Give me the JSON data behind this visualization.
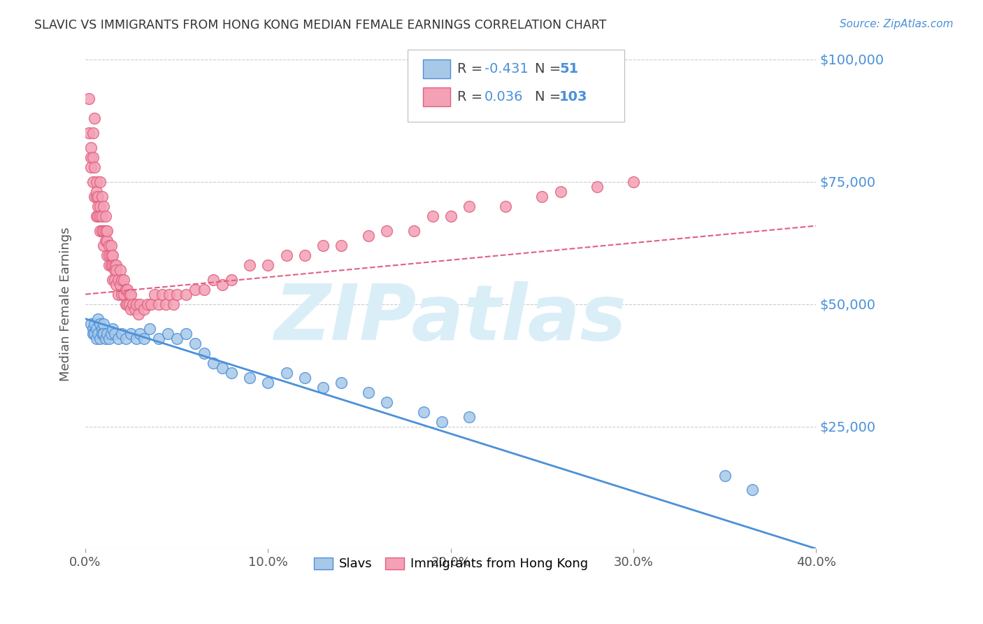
{
  "title": "SLAVIC VS IMMIGRANTS FROM HONG KONG MEDIAN FEMALE EARNINGS CORRELATION CHART",
  "source": "Source: ZipAtlas.com",
  "ylabel": "Median Female Earnings",
  "x_min": 0.0,
  "x_max": 0.4,
  "y_min": 0,
  "y_max": 100000,
  "x_ticks": [
    0.0,
    0.1,
    0.2,
    0.3,
    0.4
  ],
  "x_tick_labels": [
    "0.0%",
    "10.0%",
    "20.0%",
    "30.0%",
    "40.0%"
  ],
  "y_tick_labels": [
    "$25,000",
    "$50,000",
    "$75,000",
    "$100,000"
  ],
  "y_ticks": [
    25000,
    50000,
    75000,
    100000
  ],
  "watermark": "ZIPatlas",
  "legend_labels": [
    "Slavs",
    "Immigrants from Hong Kong"
  ],
  "slavs_color": "#a8c8e8",
  "hk_color": "#f4a0b5",
  "slavs_line_color": "#4a90d9",
  "hk_line_color": "#e06080",
  "R_slavs": -0.431,
  "N_slavs": 51,
  "R_hk": 0.036,
  "N_hk": 103,
  "slavs_scatter_x": [
    0.003,
    0.004,
    0.004,
    0.005,
    0.005,
    0.006,
    0.006,
    0.007,
    0.007,
    0.008,
    0.008,
    0.009,
    0.009,
    0.01,
    0.01,
    0.011,
    0.012,
    0.013,
    0.014,
    0.015,
    0.016,
    0.018,
    0.02,
    0.022,
    0.025,
    0.028,
    0.03,
    0.032,
    0.035,
    0.04,
    0.045,
    0.05,
    0.055,
    0.06,
    0.065,
    0.07,
    0.075,
    0.08,
    0.09,
    0.1,
    0.11,
    0.12,
    0.13,
    0.14,
    0.155,
    0.165,
    0.185,
    0.195,
    0.21,
    0.35,
    0.365
  ],
  "slavs_scatter_y": [
    46000,
    45000,
    44000,
    46000,
    44000,
    45000,
    43000,
    47000,
    44000,
    46000,
    43000,
    45000,
    44000,
    46000,
    44000,
    43000,
    44000,
    43000,
    44000,
    45000,
    44000,
    43000,
    44000,
    43000,
    44000,
    43000,
    44000,
    43000,
    45000,
    43000,
    44000,
    43000,
    44000,
    42000,
    40000,
    38000,
    37000,
    36000,
    35000,
    34000,
    36000,
    35000,
    33000,
    34000,
    32000,
    30000,
    28000,
    26000,
    27000,
    15000,
    12000
  ],
  "hk_scatter_x": [
    0.002,
    0.002,
    0.003,
    0.003,
    0.003,
    0.004,
    0.004,
    0.004,
    0.005,
    0.005,
    0.005,
    0.006,
    0.006,
    0.006,
    0.006,
    0.007,
    0.007,
    0.007,
    0.008,
    0.008,
    0.008,
    0.008,
    0.009,
    0.009,
    0.009,
    0.01,
    0.01,
    0.01,
    0.011,
    0.011,
    0.011,
    0.012,
    0.012,
    0.012,
    0.013,
    0.013,
    0.013,
    0.014,
    0.014,
    0.014,
    0.015,
    0.015,
    0.015,
    0.016,
    0.016,
    0.016,
    0.017,
    0.017,
    0.017,
    0.018,
    0.018,
    0.019,
    0.019,
    0.02,
    0.02,
    0.021,
    0.021,
    0.022,
    0.022,
    0.023,
    0.023,
    0.024,
    0.024,
    0.025,
    0.025,
    0.026,
    0.027,
    0.028,
    0.029,
    0.03,
    0.032,
    0.034,
    0.036,
    0.038,
    0.04,
    0.042,
    0.044,
    0.046,
    0.048,
    0.05,
    0.055,
    0.06,
    0.065,
    0.07,
    0.075,
    0.08,
    0.09,
    0.1,
    0.11,
    0.12,
    0.13,
    0.14,
    0.155,
    0.165,
    0.18,
    0.19,
    0.2,
    0.21,
    0.23,
    0.25,
    0.26,
    0.28,
    0.3
  ],
  "hk_scatter_y": [
    92000,
    85000,
    80000,
    82000,
    78000,
    85000,
    75000,
    80000,
    88000,
    78000,
    72000,
    75000,
    72000,
    68000,
    73000,
    72000,
    68000,
    70000,
    75000,
    70000,
    65000,
    68000,
    72000,
    65000,
    68000,
    70000,
    65000,
    62000,
    68000,
    63000,
    65000,
    63000,
    60000,
    65000,
    60000,
    58000,
    62000,
    60000,
    58000,
    62000,
    58000,
    55000,
    60000,
    57000,
    55000,
    58000,
    58000,
    54000,
    57000,
    55000,
    52000,
    57000,
    54000,
    55000,
    52000,
    55000,
    52000,
    53000,
    50000,
    53000,
    50000,
    52000,
    50000,
    52000,
    49000,
    50000,
    49000,
    50000,
    48000,
    50000,
    49000,
    50000,
    50000,
    52000,
    50000,
    52000,
    50000,
    52000,
    50000,
    52000,
    52000,
    53000,
    53000,
    55000,
    54000,
    55000,
    58000,
    58000,
    60000,
    60000,
    62000,
    62000,
    64000,
    65000,
    65000,
    68000,
    68000,
    70000,
    70000,
    72000,
    73000,
    74000,
    75000
  ],
  "background_color": "#ffffff",
  "grid_color": "#cccccc",
  "title_color": "#333333",
  "watermark_color": "#daeef8"
}
